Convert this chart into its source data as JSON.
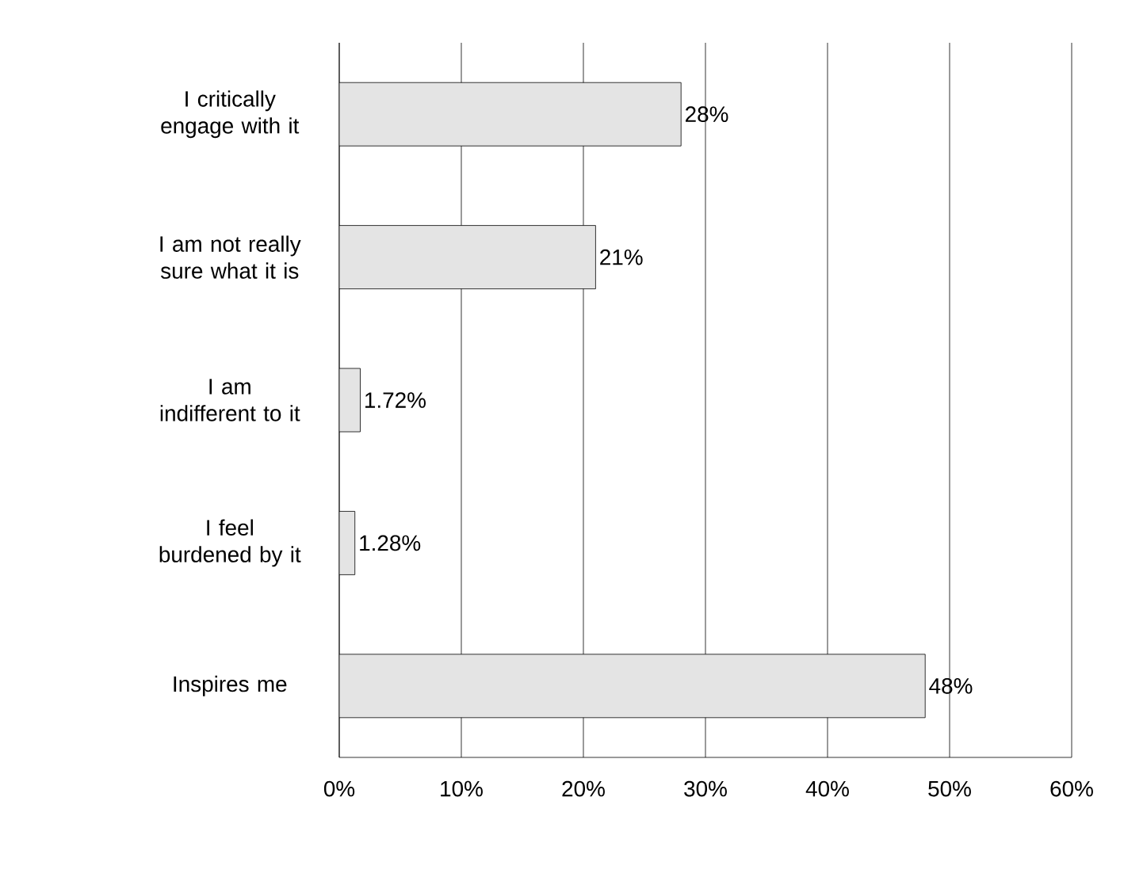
{
  "chart_data": {
    "type": "bar",
    "orientation": "horizontal",
    "categories": [
      "I critically engage with it",
      "I am not really sure what it is",
      "I am indifferent to it",
      "I feel burdened by it",
      "Inspires me"
    ],
    "values": [
      28,
      21,
      1.72,
      1.28,
      48
    ],
    "value_labels": [
      "28%",
      "21%",
      "1.72%",
      "1.28%",
      "48%"
    ],
    "color": "#e4e4e4",
    "xlim": [
      0,
      60
    ],
    "xticks": [
      {
        "value": 0,
        "label": "0%"
      },
      {
        "value": 10,
        "label": "10%"
      },
      {
        "value": 20,
        "label": "20%"
      },
      {
        "value": 30,
        "label": "30%"
      },
      {
        "value": 40,
        "label": "40%"
      },
      {
        "value": 50,
        "label": "50%"
      },
      {
        "value": 60,
        "label": "60%"
      }
    ],
    "grid": "x"
  }
}
